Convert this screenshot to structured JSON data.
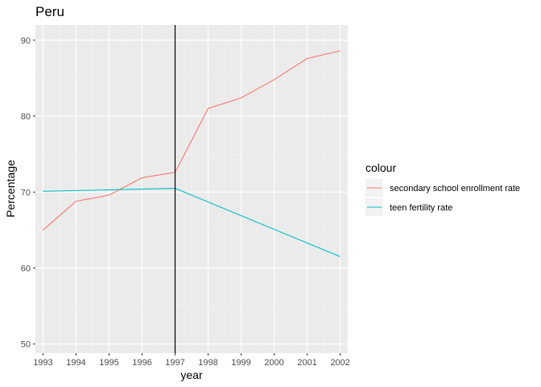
{
  "chart_data": {
    "type": "line",
    "title": "Peru",
    "xlabel": "year",
    "ylabel": "Percentage",
    "x": [
      1993,
      1994,
      1995,
      1996,
      1997,
      1998,
      1999,
      2000,
      2001,
      2002
    ],
    "xlim": [
      1992.77,
      2002.23
    ],
    "ylim": [
      48.8,
      92.0
    ],
    "yticks": [
      50,
      60,
      70,
      80,
      90
    ],
    "grid": true,
    "vline": 1997,
    "legend": {
      "title": "colour",
      "placement": "right"
    },
    "series": [
      {
        "name": "secondary school enrollment rate",
        "color": "#F8766D",
        "values": [
          65.0,
          68.8,
          69.6,
          71.9,
          72.6,
          81.0,
          82.4,
          84.8,
          87.6,
          88.6
        ]
      },
      {
        "name": "teen fertility rate",
        "color": "#00BFC4",
        "values": [
          70.1,
          null,
          null,
          null,
          70.5,
          null,
          null,
          null,
          null,
          61.5
        ]
      }
    ]
  }
}
